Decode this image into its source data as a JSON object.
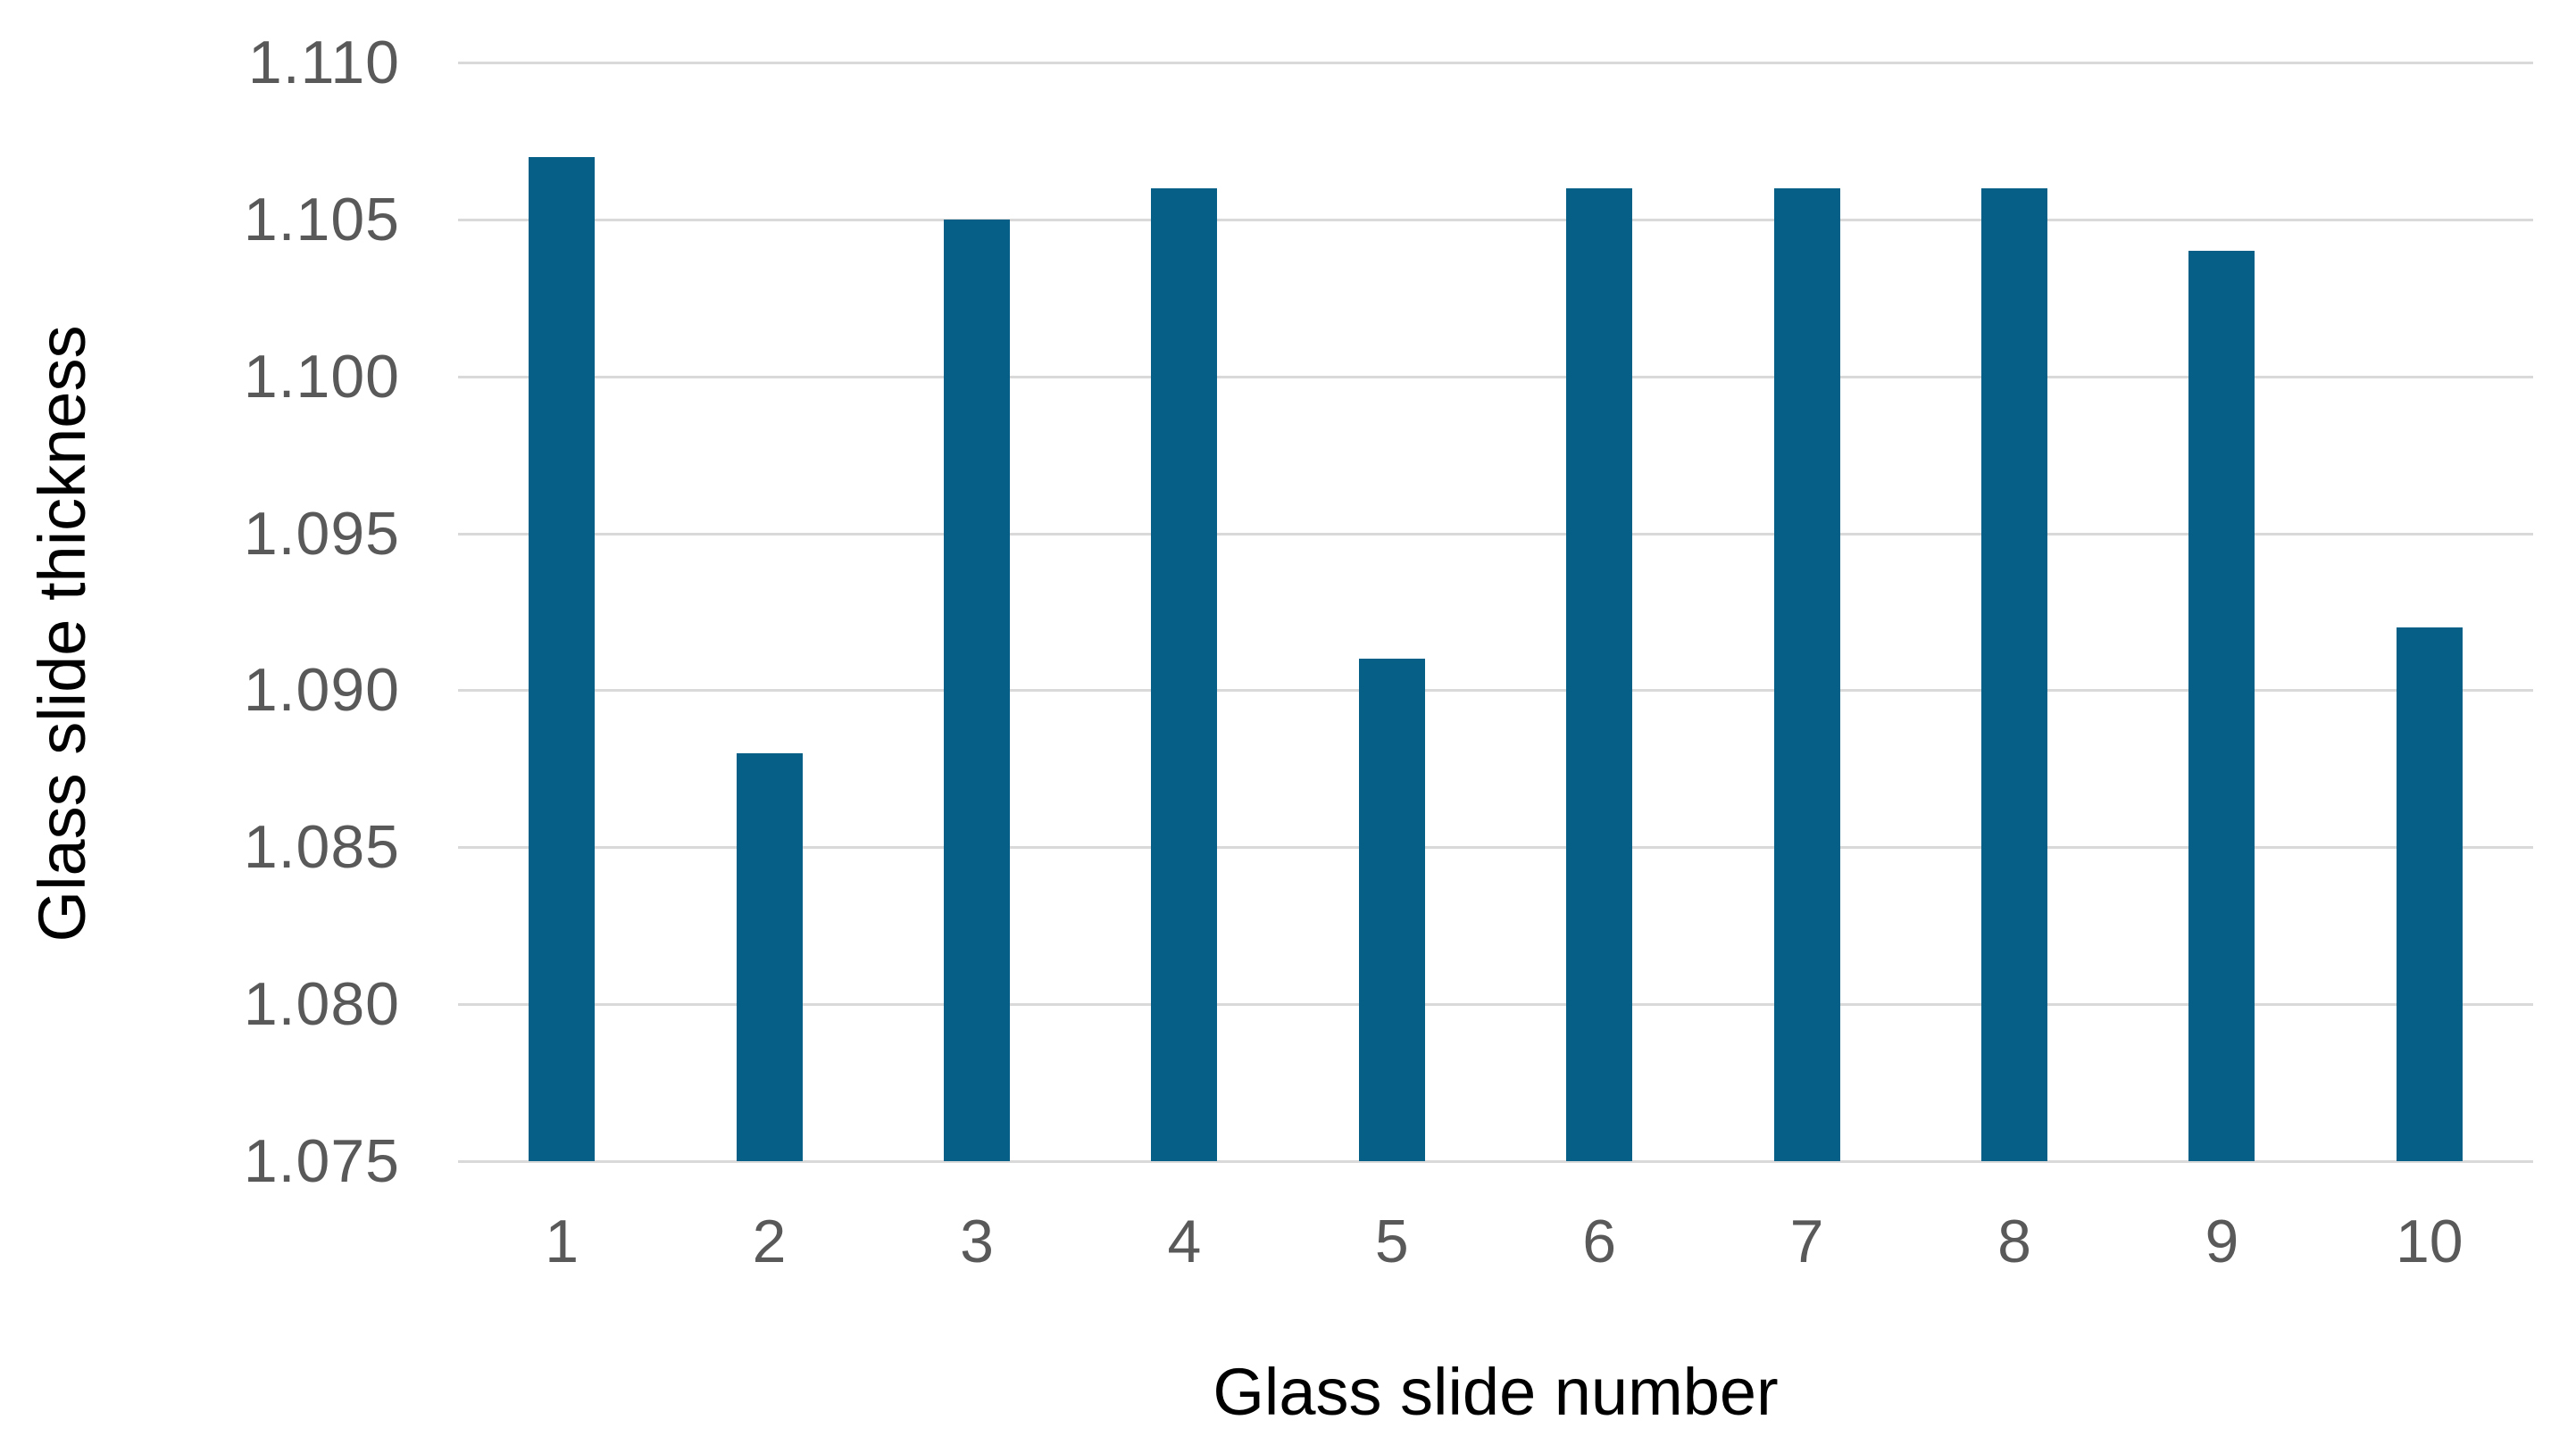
{
  "chart_data": {
    "type": "bar",
    "title": "",
    "xlabel": "Glass slide number",
    "ylabel": "Glass slide thickness",
    "categories": [
      "1",
      "2",
      "3",
      "4",
      "5",
      "6",
      "7",
      "8",
      "9",
      "10"
    ],
    "values": [
      1.107,
      1.088,
      1.105,
      1.106,
      1.091,
      1.106,
      1.106,
      1.106,
      1.104,
      1.092
    ],
    "series_name": "Glass slide thickness",
    "ylim": [
      1.075,
      1.11
    ],
    "ytick_step": 0.005,
    "ytick_labels": [
      "1.110",
      "1.105",
      "1.100",
      "1.095",
      "1.090",
      "1.085",
      "1.080",
      "1.075"
    ],
    "grid": "horizontal",
    "legend_position": "none",
    "colors": {
      "bar": "#065F87",
      "gridline": "#D9D9D9",
      "tick_label": "#595959",
      "axis_title": "#000000",
      "background": "#FFFFFF"
    }
  }
}
